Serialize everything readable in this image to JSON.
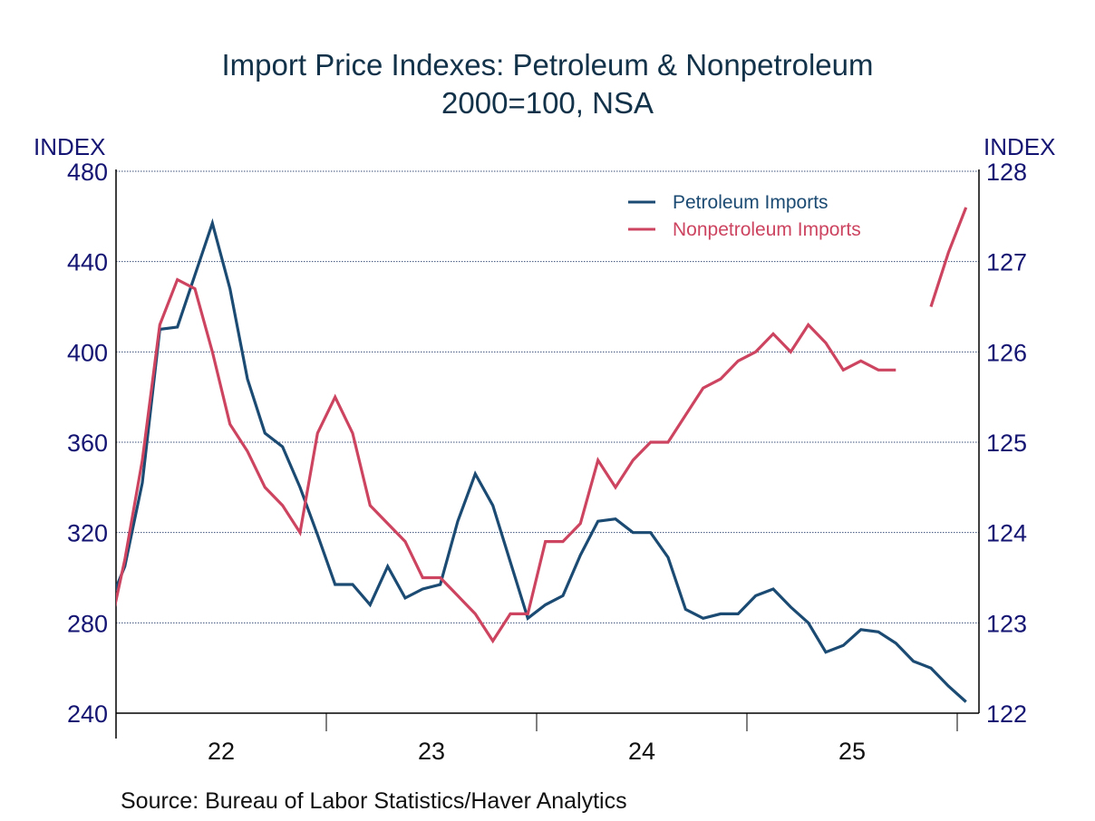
{
  "chart_data": {
    "type": "line",
    "title": "Import Price Indexes: Petroleum & Nonpetroleum",
    "subtitle": "2000=100, NSA",
    "left_axis": {
      "label": "INDEX",
      "ylim": [
        240,
        480
      ],
      "ticks": [
        240,
        280,
        320,
        360,
        400,
        440,
        480
      ]
    },
    "right_axis": {
      "label": "INDEX",
      "ylim": [
        122,
        128
      ],
      "ticks": [
        122,
        123,
        124,
        125,
        126,
        127,
        128
      ]
    },
    "x_axis": {
      "ticks": [
        "22",
        "23",
        "24",
        "25"
      ],
      "range": [
        "2022-01",
        "2026-01"
      ],
      "frequency": "monthly"
    },
    "grid": true,
    "legend_position": "top-right",
    "x": [
      "2021-12",
      "2022-01",
      "2022-02",
      "2022-03",
      "2022-04",
      "2022-05",
      "2022-06",
      "2022-07",
      "2022-08",
      "2022-09",
      "2022-10",
      "2022-11",
      "2022-12",
      "2023-01",
      "2023-02",
      "2023-03",
      "2023-04",
      "2023-05",
      "2023-06",
      "2023-07",
      "2023-08",
      "2023-09",
      "2023-10",
      "2023-11",
      "2023-12",
      "2024-01",
      "2024-02",
      "2024-03",
      "2024-04",
      "2024-05",
      "2024-06",
      "2024-07",
      "2024-08",
      "2024-09",
      "2024-10",
      "2024-11",
      "2024-12",
      "2025-01",
      "2025-02",
      "2025-03",
      "2025-04",
      "2025-05",
      "2025-06",
      "2025-07",
      "2025-08",
      "2025-09",
      "2025-10",
      "2025-11",
      "2025-12",
      "2026-01"
    ],
    "series": [
      {
        "name": "Petroleum Imports",
        "axis": "left",
        "color": "#1b4a72",
        "values": [
          286,
          305,
          342,
          410,
          411,
          434,
          457,
          428,
          388,
          364,
          358,
          340,
          319,
          297,
          297,
          288,
          305,
          291,
          295,
          297,
          325,
          346,
          332,
          307,
          282,
          288,
          292,
          310,
          325,
          326,
          320,
          320,
          309,
          286,
          282,
          284,
          284,
          292,
          295,
          287,
          280,
          267,
          270,
          277,
          276,
          271,
          263,
          260,
          252,
          245
        ]
      },
      {
        "name": "Nonpetroleum Imports",
        "axis": "right",
        "color": "#cc4460",
        "values": [
          122.8,
          123.7,
          124.8,
          126.3,
          126.8,
          126.7,
          126.0,
          125.2,
          124.9,
          124.5,
          124.3,
          124.0,
          125.1,
          125.5,
          125.1,
          124.3,
          124.1,
          123.9,
          123.5,
          123.5,
          123.3,
          123.1,
          122.8,
          123.1,
          123.1,
          123.9,
          123.9,
          124.1,
          124.8,
          124.5,
          124.8,
          125.0,
          125.0,
          125.3,
          125.6,
          125.7,
          125.9,
          126.0,
          126.2,
          126.0,
          126.3,
          126.1,
          125.8,
          125.9,
          125.8,
          125.8,
          null,
          126.5,
          127.1,
          127.6
        ]
      }
    ],
    "source": "Source:  Bureau of Labor Statistics/Haver Analytics"
  }
}
